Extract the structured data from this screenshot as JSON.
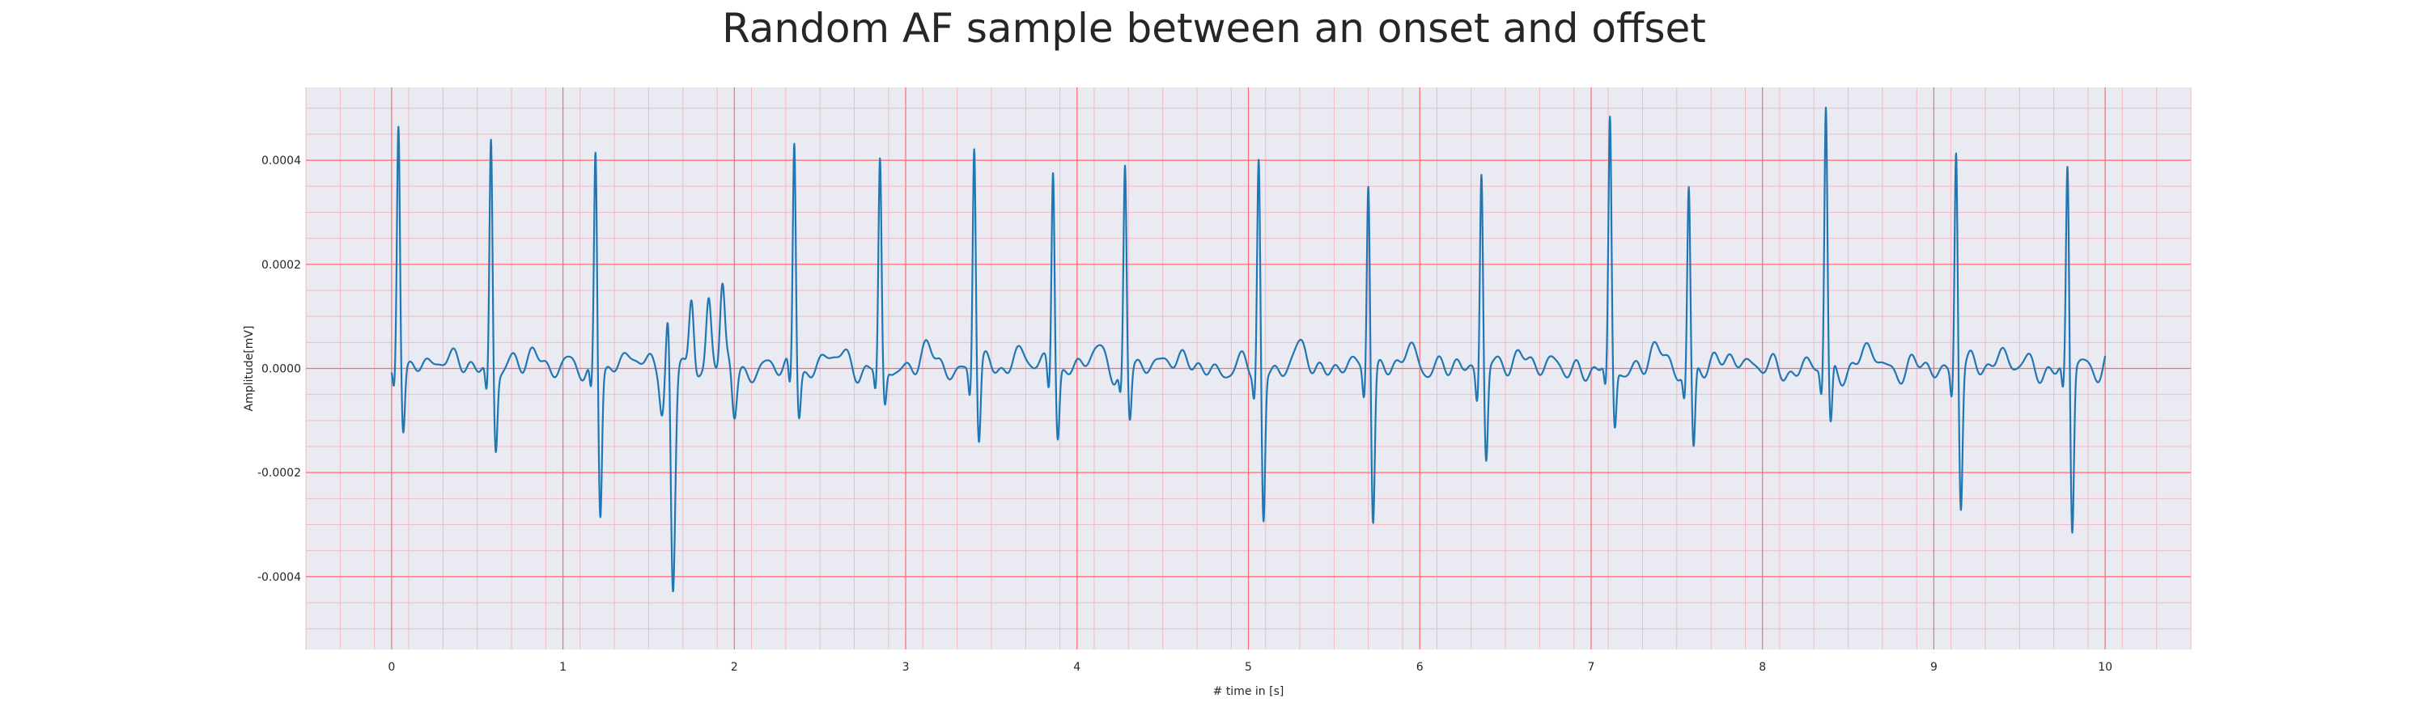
{
  "chart_data": {
    "type": "line",
    "title": "Random AF sample between an onset and offset",
    "xlabel": "# time in [s]",
    "ylabel": "Amplitude[mV]",
    "xlim": [
      -0.5,
      10.5
    ],
    "ylim": [
      -0.00054,
      0.00054
    ],
    "x_ticks": [
      0,
      1,
      2,
      3,
      4,
      5,
      6,
      7,
      8,
      9,
      10
    ],
    "x_tick_labels": [
      "0",
      "1",
      "2",
      "3",
      "4",
      "5",
      "6",
      "7",
      "8",
      "9",
      "10"
    ],
    "y_ticks": [
      0.0004,
      0.0002,
      0.0,
      -0.0002,
      -0.0004
    ],
    "y_tick_labels": [
      "0.0004",
      "0.0002",
      "0.0000",
      "-0.0002",
      "-0.0004"
    ],
    "grid": "major and minor",
    "colors": {
      "line": "#1f77b4",
      "background": "#eaeaf2",
      "major_grid": "#ff6a6a",
      "minor_grid": "#f4b8c2"
    },
    "series": [
      {
        "beats": [
          [
            0.04,
            0.00046,
            -0.00012
          ],
          [
            0.58,
            0.00045,
            -0.00014
          ],
          [
            1.19,
            0.00042,
            -0.00027
          ],
          [
            2.35,
            0.00044,
            -8e-05
          ],
          [
            2.85,
            0.00038,
            -8e-05
          ],
          [
            3.4,
            0.00044,
            -0.00014
          ],
          [
            3.86,
            0.0004,
            -0.00012
          ],
          [
            4.28,
            0.00038,
            -0.0001
          ],
          [
            5.06,
            0.0004,
            -0.00029
          ],
          [
            5.7,
            0.00038,
            -0.00028
          ],
          [
            6.36,
            0.0004,
            -0.00017
          ],
          [
            7.11,
            0.00046,
            -0.00012
          ],
          [
            7.57,
            0.00035,
            -0.00016
          ],
          [
            8.37,
            0.0005,
            -0.00012
          ],
          [
            9.13,
            0.00043,
            -0.00026
          ],
          [
            9.78,
            0.00039,
            -0.00031
          ]
        ],
        "ectopic": [
          [
            1.58,
            -8e-05
          ],
          [
            1.62,
            0.00017
          ],
          [
            1.64,
            -0.00049
          ],
          [
            1.75,
            0.00015
          ],
          [
            1.85,
            0.00012
          ],
          [
            1.93,
            0.00017
          ],
          [
            2.0,
            -0.0001
          ]
        ],
        "t_range": [
          0.0,
          10.0
        ]
      }
    ]
  }
}
